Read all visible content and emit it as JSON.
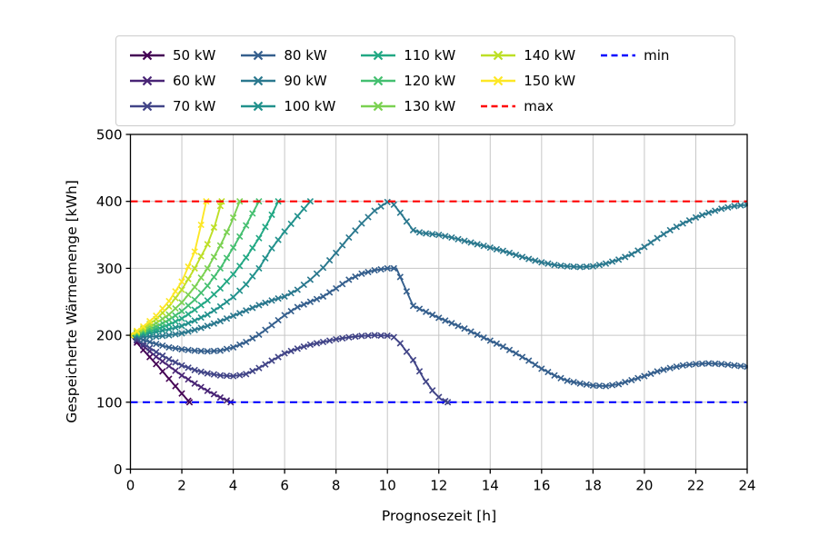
{
  "figure": {
    "background": "#ffffff"
  },
  "legend": {
    "columns": 5
  },
  "chart_data": {
    "type": "line",
    "title": "",
    "xlabel": "Prognosezeit [h]",
    "ylabel": "Gespeicherte Wärmemenge [kWh]",
    "xlim": [
      0,
      24
    ],
    "ylim": [
      0,
      500
    ],
    "xticks": [
      0,
      2,
      4,
      6,
      8,
      10,
      12,
      14,
      16,
      18,
      20,
      22,
      24
    ],
    "yticks": [
      0,
      100,
      200,
      300,
      400,
      500
    ],
    "grid": true,
    "grid_color": "#c6c6c6",
    "marker": "x",
    "marker_step_h": 0.25,
    "legend_position": "top",
    "series": [
      {
        "name": "50 kW",
        "color": "#440154",
        "points": [
          [
            0,
            200
          ],
          [
            0.5,
            178
          ],
          [
            1,
            157
          ],
          [
            1.5,
            135
          ],
          [
            2,
            113
          ],
          [
            2.3,
            100
          ]
        ]
      },
      {
        "name": "60 kW",
        "color": "#482475",
        "points": [
          [
            0,
            200
          ],
          [
            0.5,
            184
          ],
          [
            1,
            168
          ],
          [
            1.5,
            154
          ],
          [
            2,
            140
          ],
          [
            2.5,
            128
          ],
          [
            3,
            117
          ],
          [
            3.5,
            107
          ],
          [
            3.9,
            100
          ]
        ]
      },
      {
        "name": "70 kW",
        "color": "#414487",
        "points": [
          [
            0,
            200
          ],
          [
            0.5,
            187
          ],
          [
            1,
            175
          ],
          [
            1.5,
            164
          ],
          [
            2,
            155
          ],
          [
            2.5,
            148
          ],
          [
            3,
            143
          ],
          [
            3.5,
            140
          ],
          [
            4,
            139
          ],
          [
            4.5,
            142
          ],
          [
            5,
            151
          ],
          [
            5.5,
            162
          ],
          [
            6,
            173
          ],
          [
            6.5,
            180
          ],
          [
            7,
            186
          ],
          [
            7.5,
            190
          ],
          [
            8,
            194
          ],
          [
            8.5,
            197
          ],
          [
            9,
            199
          ],
          [
            9.5,
            200
          ],
          [
            10.2,
            199
          ],
          [
            10.5,
            188
          ],
          [
            11,
            163
          ],
          [
            11.4,
            136
          ],
          [
            11.8,
            115
          ],
          [
            12.1,
            104
          ],
          [
            12.35,
            100
          ]
        ]
      },
      {
        "name": "80 kW",
        "color": "#355f8d",
        "points": [
          [
            0,
            200
          ],
          [
            0.5,
            193
          ],
          [
            1,
            187
          ],
          [
            1.5,
            182
          ],
          [
            2,
            179
          ],
          [
            2.5,
            177
          ],
          [
            3,
            176
          ],
          [
            3.5,
            177
          ],
          [
            4,
            182
          ],
          [
            4.5,
            190
          ],
          [
            5,
            201
          ],
          [
            5.5,
            215
          ],
          [
            6,
            230
          ],
          [
            6.5,
            242
          ],
          [
            7,
            250
          ],
          [
            7.5,
            258
          ],
          [
            8,
            270
          ],
          [
            8.5,
            283
          ],
          [
            9,
            292
          ],
          [
            9.5,
            297
          ],
          [
            10,
            300
          ],
          [
            10.35,
            300
          ],
          [
            11,
            244
          ],
          [
            11.5,
            235
          ],
          [
            12,
            226
          ],
          [
            12.5,
            218
          ],
          [
            13,
            210
          ],
          [
            13.5,
            201
          ],
          [
            14,
            192
          ],
          [
            14.5,
            183
          ],
          [
            15,
            173
          ],
          [
            15.5,
            162
          ],
          [
            16,
            150
          ],
          [
            16.5,
            140
          ],
          [
            17,
            132
          ],
          [
            17.5,
            128
          ],
          [
            18,
            125
          ],
          [
            18.5,
            124
          ],
          [
            19,
            127
          ],
          [
            19.5,
            133
          ],
          [
            20,
            139
          ],
          [
            20.5,
            146
          ],
          [
            21,
            151
          ],
          [
            21.5,
            155
          ],
          [
            22,
            157
          ],
          [
            22.5,
            158
          ],
          [
            23,
            157
          ],
          [
            23.5,
            155
          ],
          [
            24,
            153
          ]
        ]
      },
      {
        "name": "90 kW",
        "color": "#2a788e",
        "points": [
          [
            0,
            200
          ],
          [
            0.5,
            198
          ],
          [
            1,
            198
          ],
          [
            1.5,
            200
          ],
          [
            2,
            203
          ],
          [
            2.5,
            208
          ],
          [
            3,
            214
          ],
          [
            3.5,
            221
          ],
          [
            4,
            229
          ],
          [
            4.5,
            237
          ],
          [
            5,
            245
          ],
          [
            5.5,
            252
          ],
          [
            6,
            258
          ],
          [
            6.5,
            268
          ],
          [
            7,
            283
          ],
          [
            7.5,
            301
          ],
          [
            8,
            323
          ],
          [
            8.5,
            346
          ],
          [
            9,
            367
          ],
          [
            9.5,
            386
          ],
          [
            10,
            399
          ],
          [
            10.15,
            400
          ],
          [
            10.5,
            383
          ],
          [
            11,
            357
          ],
          [
            11.3,
            353
          ],
          [
            12,
            350
          ],
          [
            12.5,
            346
          ],
          [
            13,
            341
          ],
          [
            13.5,
            336
          ],
          [
            14,
            331
          ],
          [
            14.5,
            326
          ],
          [
            15,
            320
          ],
          [
            15.5,
            314
          ],
          [
            16,
            309
          ],
          [
            16.5,
            305
          ],
          [
            17,
            303
          ],
          [
            17.5,
            302
          ],
          [
            18,
            303
          ],
          [
            18.5,
            307
          ],
          [
            19,
            313
          ],
          [
            19.5,
            321
          ],
          [
            20,
            332
          ],
          [
            20.5,
            345
          ],
          [
            21,
            357
          ],
          [
            21.5,
            367
          ],
          [
            22,
            376
          ],
          [
            22.5,
            383
          ],
          [
            23,
            389
          ],
          [
            23.5,
            393
          ],
          [
            24,
            395
          ]
        ]
      },
      {
        "name": "100 kW",
        "color": "#21918c",
        "points": [
          [
            0,
            200
          ],
          [
            0.5,
            202
          ],
          [
            1,
            205
          ],
          [
            1.5,
            209
          ],
          [
            2,
            214
          ],
          [
            2.5,
            222
          ],
          [
            3,
            231
          ],
          [
            3.5,
            243
          ],
          [
            4,
            257
          ],
          [
            4.5,
            276
          ],
          [
            5,
            300
          ],
          [
            5.5,
            330
          ],
          [
            6,
            355
          ],
          [
            6.5,
            378
          ],
          [
            7,
            400
          ]
        ]
      },
      {
        "name": "110 kW",
        "color": "#22a884",
        "points": [
          [
            0,
            200
          ],
          [
            0.5,
            204
          ],
          [
            1,
            209
          ],
          [
            1.5,
            216
          ],
          [
            2,
            225
          ],
          [
            2.5,
            238
          ],
          [
            3,
            252
          ],
          [
            3.5,
            270
          ],
          [
            4,
            291
          ],
          [
            4.5,
            316
          ],
          [
            5,
            345
          ],
          [
            5.4,
            372
          ],
          [
            5.75,
            400
          ]
        ]
      },
      {
        "name": "120 kW",
        "color": "#44bf70",
        "points": [
          [
            0,
            200
          ],
          [
            0.5,
            206
          ],
          [
            1,
            213
          ],
          [
            1.5,
            223
          ],
          [
            2,
            236
          ],
          [
            2.5,
            253
          ],
          [
            3,
            274
          ],
          [
            3.5,
            300
          ],
          [
            4,
            331
          ],
          [
            4.5,
            364
          ],
          [
            5,
            400
          ]
        ]
      },
      {
        "name": "130 kW",
        "color": "#7ad151",
        "points": [
          [
            0,
            200
          ],
          [
            0.5,
            208
          ],
          [
            1,
            218
          ],
          [
            1.5,
            231
          ],
          [
            2,
            249
          ],
          [
            2.5,
            272
          ],
          [
            3,
            300
          ],
          [
            3.5,
            334
          ],
          [
            3.9,
            366
          ],
          [
            4.25,
            400
          ]
        ]
      },
      {
        "name": "140 kW",
        "color": "#bddf26",
        "points": [
          [
            0,
            200
          ],
          [
            0.5,
            210
          ],
          [
            1,
            224
          ],
          [
            1.5,
            243
          ],
          [
            2,
            268
          ],
          [
            2.5,
            300
          ],
          [
            3,
            336
          ],
          [
            3.3,
            366
          ],
          [
            3.55,
            400
          ]
        ]
      },
      {
        "name": "150 kW",
        "color": "#fde725",
        "points": [
          [
            0,
            200
          ],
          [
            0.5,
            213
          ],
          [
            1,
            229
          ],
          [
            1.5,
            251
          ],
          [
            2,
            280
          ],
          [
            2.5,
            325
          ],
          [
            2.75,
            365
          ],
          [
            2.95,
            400
          ]
        ]
      }
    ],
    "reference_lines": [
      {
        "name": "max",
        "value": 400,
        "color": "#ff0000",
        "style": "dashed"
      },
      {
        "name": "min",
        "value": 100,
        "color": "#0000ff",
        "style": "dashed"
      }
    ]
  }
}
